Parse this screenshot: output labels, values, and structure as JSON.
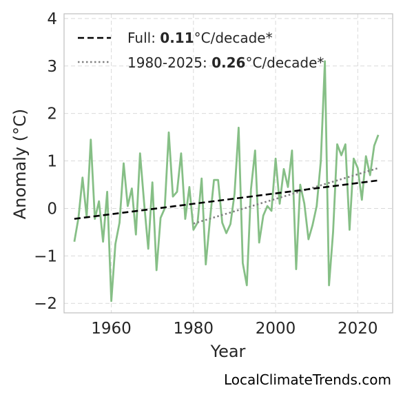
{
  "credit": "LocalClimateTrends.com",
  "legend": {
    "full": {
      "prefix": "Full: ",
      "value": "0.11",
      "suffix": "°C/decade*"
    },
    "recent": {
      "prefix": "1980-2025: ",
      "value": "0.26",
      "suffix": "°C/decade*"
    }
  },
  "colors": {
    "series": "#86bf86",
    "trend_full": "#000000",
    "trend_recent": "#808080",
    "grid": "#d9d9d9",
    "frame": "#bfbfbf"
  },
  "chart_data": {
    "type": "line",
    "title": "",
    "xlabel": "Year",
    "ylabel": "Anomaly (°C)",
    "xlim": [
      1948.5,
      2028.5
    ],
    "ylim": [
      -2.2,
      4.1
    ],
    "xticks": [
      1960,
      1980,
      2000,
      2020
    ],
    "xtick_labels": [
      "1960",
      "1980",
      "2000",
      "2020"
    ],
    "yticks": [
      -2,
      -1,
      0,
      1,
      2,
      3,
      4
    ],
    "ytick_labels": [
      "−2",
      "−1",
      "0",
      "1",
      "2",
      "3",
      "4"
    ],
    "grid": true,
    "legend_position": "top-left",
    "series": [
      {
        "x": [
          1951,
          1952,
          1953,
          1954,
          1955,
          1956,
          1957,
          1958,
          1959,
          1960,
          1961,
          1962,
          1963,
          1964,
          1965,
          1966,
          1967,
          1968,
          1969,
          1970,
          1971,
          1972,
          1973,
          1974,
          1975,
          1976,
          1977,
          1978,
          1979,
          1980,
          1981,
          1982,
          1983,
          1984,
          1985,
          1986,
          1987,
          1988,
          1989,
          1990,
          1991,
          1992,
          1993,
          1994,
          1995,
          1996,
          1997,
          1998,
          1999,
          2000,
          2001,
          2002,
          2003,
          2004,
          2005,
          2006,
          2007,
          2008,
          2009,
          2010,
          2011,
          2012,
          2013,
          2014,
          2015,
          2016,
          2017,
          2018,
          2019,
          2020,
          2021,
          2022,
          2023,
          2024,
          2025
        ],
        "values": [
          -0.7,
          -0.2,
          0.65,
          -0.18,
          1.45,
          -0.22,
          0.15,
          -0.7,
          0.35,
          -1.95,
          -0.75,
          -0.3,
          0.95,
          0.05,
          0.42,
          -0.55,
          1.16,
          0.1,
          -0.85,
          0.55,
          -1.3,
          -0.2,
          0.0,
          1.6,
          0.25,
          0.35,
          1.16,
          -0.22,
          0.45,
          -0.45,
          -0.3,
          0.63,
          -1.18,
          -0.25,
          0.6,
          0.6,
          -0.3,
          -0.52,
          -0.33,
          0.3,
          1.7,
          -1.15,
          -1.62,
          0.4,
          1.22,
          -0.72,
          -0.15,
          0.05,
          -0.05,
          1.05,
          0.1,
          0.83,
          0.45,
          1.22,
          -1.28,
          0.5,
          0.1,
          -0.65,
          -0.35,
          0.05,
          1.0,
          3.1,
          -1.62,
          -0.5,
          1.35,
          1.12,
          1.35,
          -0.45,
          1.05,
          0.85,
          0.18,
          1.1,
          0.7,
          1.32,
          1.55
        ]
      }
    ],
    "trend_lines": [
      {
        "name": "Full",
        "x": [
          1951,
          2025
        ],
        "y": [
          -0.22,
          0.59
        ]
      },
      {
        "name": "1980-2025",
        "x": [
          1980,
          2025
        ],
        "y": [
          -0.32,
          0.85
        ]
      }
    ]
  }
}
